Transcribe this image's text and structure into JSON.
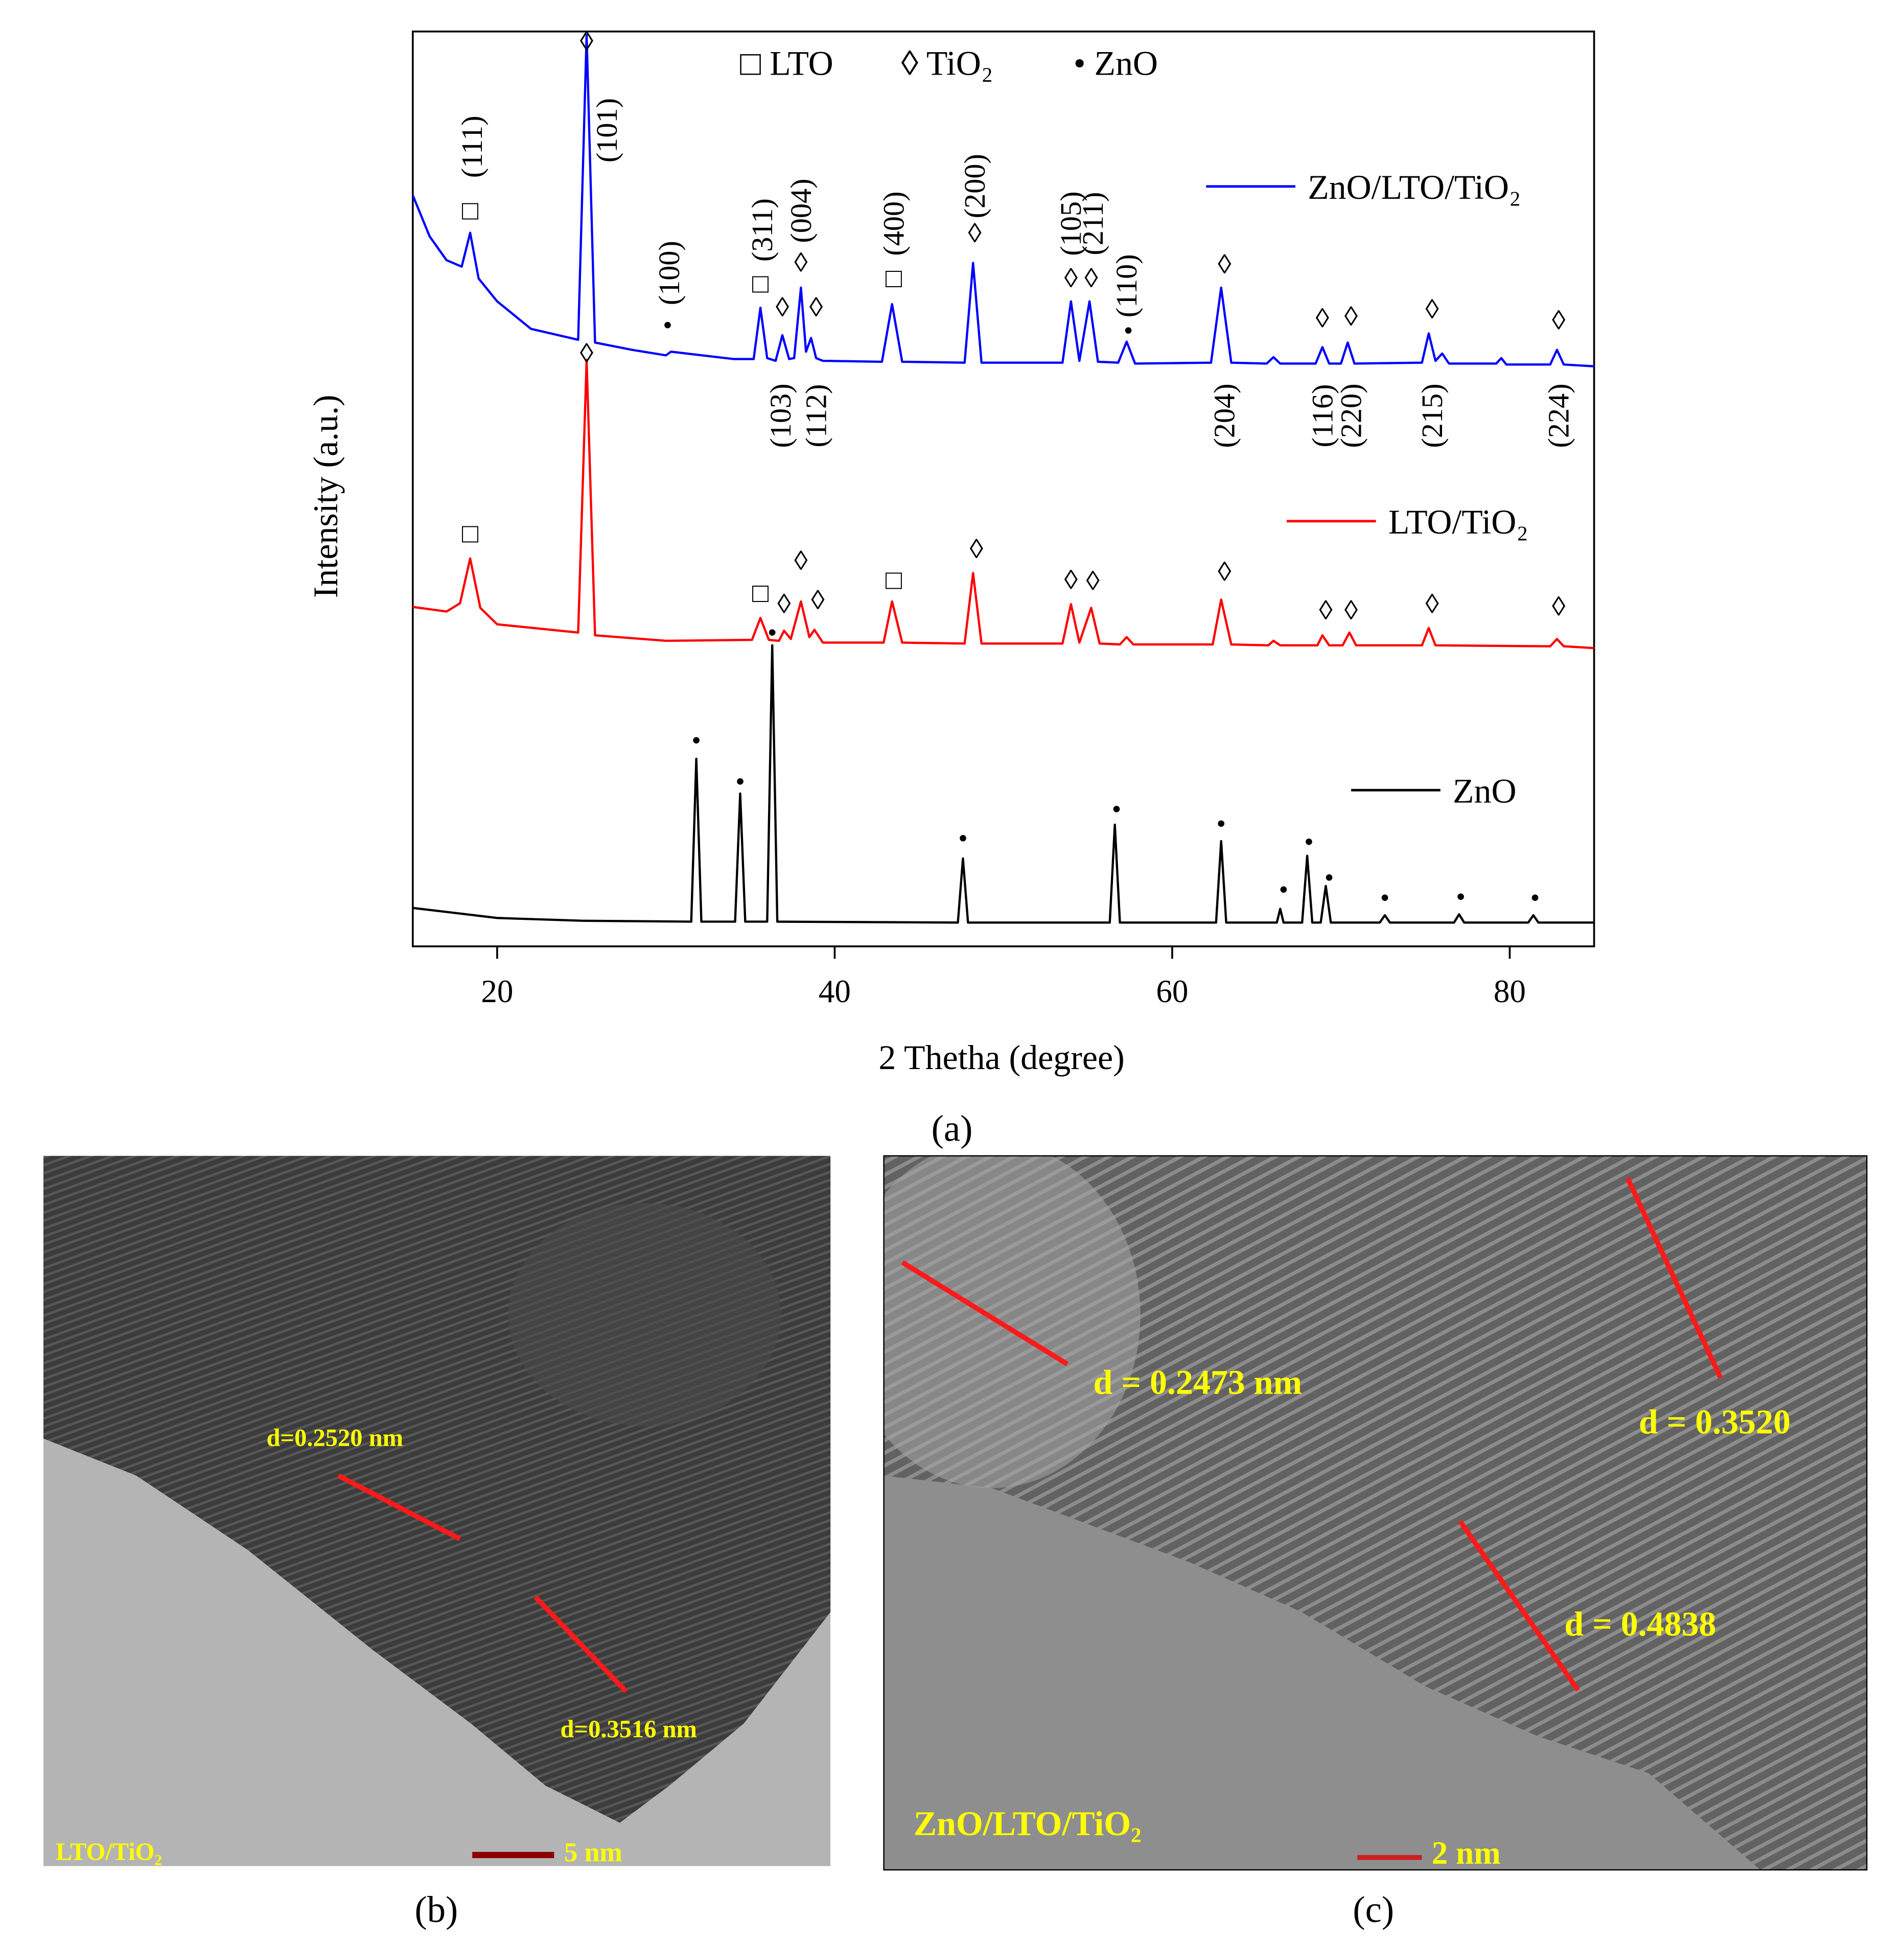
{
  "chart_data": {
    "type": "line",
    "xlabel": "2 Thetha (degree)",
    "ylabel": "Intensity (a.u.)",
    "xlim": [
      15,
      85
    ],
    "xticks": [
      20,
      40,
      60,
      80
    ],
    "ylim": [
      0,
      100
    ],
    "phase_legend": [
      "□ LTO",
      "◊ TiO₂",
      "• ZnO"
    ],
    "series": [
      {
        "name": "ZnO/LTO/TiO₂",
        "color": "#0000ff",
        "x": [
          15,
          16,
          17,
          17.9,
          18.4,
          18.9,
          20,
          22,
          24.8,
          25.3,
          25.8,
          28,
          30,
          30.3,
          34,
          35.2,
          35.6,
          36,
          36.5,
          36.9,
          37.3,
          37.6,
          38,
          38.3,
          38.6,
          38.9,
          39.3,
          42.8,
          43.4,
          44,
          47.7,
          48.2,
          48.7,
          53.5,
          54,
          54.5,
          55.1,
          55.6,
          56.8,
          57.3,
          57.8,
          62.3,
          62.9,
          63.5,
          65.6,
          66,
          66.4,
          68.5,
          68.9,
          69.3,
          70,
          70.4,
          70.8,
          74.8,
          75.2,
          75.6,
          76,
          76.4,
          79.2,
          79.5,
          79.8,
          82.4,
          82.8,
          83.2,
          85
        ],
        "values": [
          82.1,
          77.6,
          75.0,
          74.3,
          78.0,
          73.0,
          70.5,
          67.5,
          66.3,
          99.6,
          66.0,
          65.2,
          64.6,
          65.0,
          64.2,
          64.2,
          69.8,
          64.3,
          64.0,
          66.8,
          64.2,
          64.3,
          72.0,
          65.0,
          66.5,
          64.3,
          64.0,
          63.9,
          70.2,
          63.9,
          63.8,
          74.7,
          63.8,
          63.8,
          70.5,
          64.0,
          70.5,
          63.9,
          63.8,
          66.1,
          63.7,
          63.8,
          72.0,
          63.8,
          63.7,
          64.4,
          63.7,
          63.7,
          65.5,
          63.7,
          63.7,
          66.0,
          63.7,
          63.8,
          67.0,
          64.0,
          64.8,
          63.7,
          63.7,
          64.3,
          63.6,
          63.6,
          65.2,
          63.6,
          63.4
        ],
        "markers": [
          {
            "text": "□",
            "x": 18.4,
            "y": 80.4
          },
          {
            "text": "◊",
            "x": 25.3,
            "y": 98.9
          },
          {
            "text": "•",
            "x": 30.1,
            "y": 67.9
          },
          {
            "text": "□",
            "x": 35.6,
            "y": 72.4
          },
          {
            "text": "◊",
            "x": 36.9,
            "y": 69.8
          },
          {
            "text": "◊",
            "x": 38.0,
            "y": 74.7
          },
          {
            "text": "◊",
            "x": 38.9,
            "y": 69.8
          },
          {
            "text": "□",
            "x": 43.5,
            "y": 73
          },
          {
            "text": "◊",
            "x": 48.3,
            "y": 77.9
          },
          {
            "text": "◊",
            "x": 54.0,
            "y": 73
          },
          {
            "text": "◊",
            "x": 55.2,
            "y": 73
          },
          {
            "text": "•",
            "x": 57.4,
            "y": 67.3
          },
          {
            "text": "◊",
            "x": 63.1,
            "y": 74.5
          },
          {
            "text": "◊",
            "x": 68.9,
            "y": 68.6
          },
          {
            "text": "◊",
            "x": 70.6,
            "y": 68.8
          },
          {
            "text": "◊",
            "x": 75.4,
            "y": 69.6
          },
          {
            "text": "◊",
            "x": 82.9,
            "y": 68.4
          }
        ]
      },
      {
        "name": "LTO/TiO₂",
        "color": "#ff0000",
        "x": [
          15,
          17,
          17.8,
          18.4,
          19,
          20,
          24.8,
          25.3,
          25.8,
          30,
          35.1,
          35.6,
          36.1,
          36.7,
          37,
          37.4,
          38,
          38.5,
          38.8,
          39.3,
          42.9,
          43.4,
          44,
          47.7,
          48.2,
          48.7,
          53.5,
          54,
          54.5,
          55.2,
          55.7,
          56.9,
          57.3,
          57.7,
          62.4,
          62.9,
          63.5,
          65.7,
          66,
          66.4,
          68.6,
          68.9,
          69.3,
          70.1,
          70.5,
          70.9,
          74.8,
          75.2,
          75.6,
          82.4,
          82.8,
          83.2,
          85
        ],
        "values": [
          37.1,
          36.6,
          37.5,
          42.4,
          37.0,
          35.2,
          34.3,
          64.1,
          34.0,
          33.4,
          33.5,
          35.9,
          33.5,
          33.4,
          34.5,
          33.6,
          37.7,
          33.8,
          34.6,
          33.2,
          33.2,
          37.7,
          33.2,
          33.1,
          40.8,
          33.1,
          33.1,
          37.4,
          33.2,
          37.0,
          33.1,
          33.0,
          33.8,
          33.0,
          33.0,
          37.9,
          33.0,
          32.9,
          33.4,
          32.9,
          32.9,
          34.0,
          32.9,
          32.9,
          34.3,
          32.9,
          32.9,
          34.8,
          32.9,
          32.8,
          33.6,
          32.8,
          32.6
        ],
        "markers": [
          {
            "text": "□",
            "x": 18.4,
            "y": 45.1
          },
          {
            "text": "◊",
            "x": 25.3,
            "y": 64.8
          },
          {
            "text": "□",
            "x": 35.6,
            "y": 38.6
          },
          {
            "text": "◊",
            "x": 37.0,
            "y": 37.4
          },
          {
            "text": "◊",
            "x": 38.0,
            "y": 42.1
          },
          {
            "text": "◊",
            "x": 39.0,
            "y": 37.8
          },
          {
            "text": "□",
            "x": 43.5,
            "y": 40
          },
          {
            "text": "◊",
            "x": 48.4,
            "y": 43.4
          },
          {
            "text": "◊",
            "x": 54.0,
            "y": 40
          },
          {
            "text": "◊",
            "x": 55.3,
            "y": 39.9
          },
          {
            "text": "◊",
            "x": 63.1,
            "y": 40.9
          },
          {
            "text": "◊",
            "x": 69.1,
            "y": 36.7
          },
          {
            "text": "◊",
            "x": 70.6,
            "y": 36.7
          },
          {
            "text": "◊",
            "x": 75.4,
            "y": 37.4
          },
          {
            "text": "◊",
            "x": 82.9,
            "y": 37.1
          }
        ]
      },
      {
        "name": "ZnO",
        "color": "#000000",
        "x": [
          15,
          20,
          25,
          31.5,
          31.8,
          32.1,
          34.1,
          34.4,
          34.7,
          36,
          36.3,
          36.6,
          47.3,
          47.6,
          47.9,
          56.3,
          56.6,
          56.9,
          62.6,
          62.9,
          63.2,
          66.2,
          66.4,
          66.6,
          67.7,
          68,
          68.3,
          68.8,
          69.1,
          69.4,
          72.3,
          72.6,
          72.9,
          76.7,
          77,
          77.3,
          81.1,
          81.4,
          81.7,
          85
        ],
        "values": [
          4.2,
          3.1,
          2.8,
          2.7,
          20.5,
          2.7,
          2.7,
          16.7,
          2.7,
          2.7,
          32.9,
          2.7,
          2.6,
          9.6,
          2.6,
          2.6,
          13.3,
          2.6,
          2.6,
          11.5,
          2.6,
          2.6,
          4.1,
          2.6,
          2.6,
          9.9,
          2.6,
          2.6,
          6.6,
          2.6,
          2.6,
          3.4,
          2.6,
          2.6,
          3.5,
          2.6,
          2.6,
          3.4,
          2.6,
          2.6
        ],
        "markers": [
          {
            "text": "•",
            "x": 31.8,
            "y": 22.5
          },
          {
            "text": "•",
            "x": 34.4,
            "y": 18
          },
          {
            "text": "•",
            "x": 36.3,
            "y": 34.3
          },
          {
            "text": "•",
            "x": 47.6,
            "y": 11.8
          },
          {
            "text": "•",
            "x": 56.7,
            "y": 15
          },
          {
            "text": "•",
            "x": 62.9,
            "y": 13.4
          },
          {
            "text": "•",
            "x": 66.6,
            "y": 6.2
          },
          {
            "text": "•",
            "x": 68.1,
            "y": 11.4
          },
          {
            "text": "•",
            "x": 69.3,
            "y": 7.5
          },
          {
            "text": "•",
            "x": 72.6,
            "y": 5.3
          },
          {
            "text": "•",
            "x": 77.1,
            "y": 5.4
          },
          {
            "text": "•",
            "x": 81.5,
            "y": 5.3
          }
        ]
      }
    ],
    "annotations": [
      {
        "text": "(111)",
        "x": 18.5,
        "y": 87.4
      },
      {
        "text": "(101)",
        "x": 26.5,
        "y": 89.2
      },
      {
        "text": "(100)",
        "x": 30.2,
        "y": 73.6
      },
      {
        "text": "(311)",
        "x": 35.7,
        "y": 78.3
      },
      {
        "text": "(004)",
        "x": 38.0,
        "y": 80.4
      },
      {
        "text": "(400)",
        "x": 43.5,
        "y": 79
      },
      {
        "text": "(200)",
        "x": 48.3,
        "y": 83.1
      },
      {
        "text": "(105)",
        "x": 54.0,
        "y": 79
      },
      {
        "text": "(211)",
        "x": 55.3,
        "y": 79
      },
      {
        "text": "(110)",
        "x": 57.3,
        "y": 72.2
      },
      {
        "text": "(103)",
        "x": 36.8,
        "y": 58
      },
      {
        "text": "(112)",
        "x": 38.9,
        "y": 58
      },
      {
        "text": "(204)",
        "x": 63.1,
        "y": 58
      },
      {
        "text": "(116)",
        "x": 68.9,
        "y": 58
      },
      {
        "text": "(220)",
        "x": 70.6,
        "y": 58
      },
      {
        "text": "(215)",
        "x": 75.4,
        "y": 58
      },
      {
        "text": "(224)",
        "x": 82.9,
        "y": 58
      }
    ]
  },
  "panel_labels": [
    "(a)",
    "(b)",
    "(c)"
  ],
  "images": [
    {
      "label": "LTO/TiO₂",
      "scale_bar": "5 nm",
      "d_spacings": [
        "d=0.2520 nm",
        "d=0.3516 nm"
      ]
    },
    {
      "label": "ZnO/LTO/TiO₂",
      "scale_bar": "2 nm",
      "d_spacings": [
        "d = 0.2473 nm",
        "d = 0.3520",
        "d = 0.4838"
      ]
    }
  ]
}
